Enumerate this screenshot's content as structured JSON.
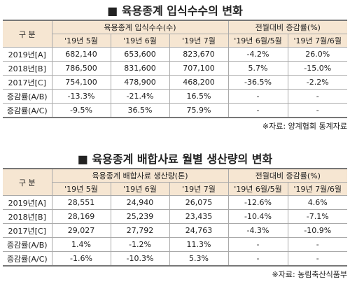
{
  "tables": [
    {
      "title": "■ 육용종계 입식수수의 변화",
      "header": {
        "label": "구 분",
        "groups": [
          "육용종계 입식수수(수)",
          "전월대비 증감률(%)"
        ],
        "columns": [
          "'19년 5월",
          "'19년 6월",
          "'19년 7월",
          "'19년 6월/5월",
          "'19년 7월/6월"
        ]
      },
      "rows": [
        [
          "2019년[A]",
          "682,140",
          "653,600",
          "823,670",
          "-4.2%",
          "26.0%"
        ],
        [
          "2018년[B]",
          "786,500",
          "831,600",
          "707,100",
          "5.7%",
          "-15.0%"
        ],
        [
          "2017년[C]",
          "754,100",
          "478,900",
          "468,200",
          "-36.5%",
          "-2.2%"
        ],
        [
          "증감률(A/B)",
          "-13.3%",
          "-21.4%",
          "16.5%",
          "-",
          "-"
        ],
        [
          "증감률(A/C)",
          "-9.5%",
          "36.5%",
          "75.9%",
          "-",
          "-"
        ]
      ],
      "source": "※자료: 양계협회 통계자료"
    },
    {
      "title": "■ 육용종계 배합사료 월별 생산량의 변화",
      "header": {
        "label": "구 분",
        "groups": [
          "육용종계 배합사료 생산량(톤)",
          "전월대비 증감률(%)"
        ],
        "columns": [
          "'19년 5월",
          "'19년 6월",
          "'19년 7월",
          "'19년 6월/5월",
          "'19년 7월/6월"
        ]
      },
      "rows": [
        [
          "2019년[A]",
          "28,551",
          "24,940",
          "26,075",
          "-12.6%",
          "4.6%"
        ],
        [
          "2018년[B]",
          "28,169",
          "25,239",
          "23,435",
          "-10.4%",
          "-7.1%"
        ],
        [
          "2017년[C]",
          "29,027",
          "27,792",
          "24,763",
          "-4.3%",
          "-10.9%"
        ],
        [
          "증감률(A/B)",
          "1.4%",
          "-1.2%",
          "11.3%",
          "-",
          "-"
        ],
        [
          "증감률(A/C)",
          "-1.6%",
          "-10.3%",
          "5.3%",
          "-",
          "-"
        ]
      ],
      "source": "※자료: 농림축산식품부"
    }
  ]
}
